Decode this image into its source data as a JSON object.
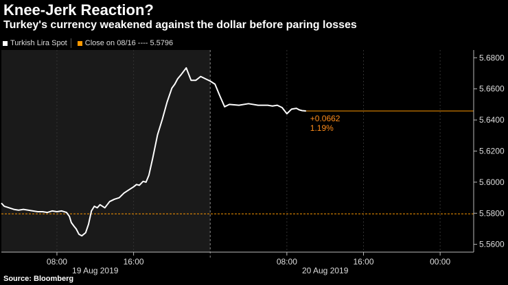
{
  "header": {
    "title": "Knee-Jerk Reaction?",
    "subtitle": "Turkey's currency weakened against the dollar before paring losses"
  },
  "legend": {
    "series_label": "Turkish Lira Spot",
    "close_label": "Close on 08/16 ---- 5.5796",
    "series_color": "#ffffff",
    "close_color": "#ff9900"
  },
  "source": "Source: Bloomberg",
  "chart_data": {
    "type": "line",
    "title": "Knee-Jerk Reaction?",
    "subtitle": "Turkey's currency weakened against the dollar before paring losses",
    "ylim": [
      5.555,
      5.685
    ],
    "yticks": [
      5.56,
      5.58,
      5.6,
      5.62,
      5.64,
      5.66,
      5.68
    ],
    "ytick_labels": [
      "5.5600",
      "5.5800",
      "5.6000",
      "5.6200",
      "5.6400",
      "5.6600",
      "5.6800"
    ],
    "x_unit": "hours since 00:00 19 Aug 2019",
    "xlim": [
      2.2,
      51.5
    ],
    "xticks": [
      {
        "x": 8,
        "label": "08:00"
      },
      {
        "x": 16,
        "label": "16:00"
      },
      {
        "x": 32,
        "label": "08:00"
      },
      {
        "x": 40,
        "label": "16:00"
      },
      {
        "x": 48,
        "label": "00:00"
      }
    ],
    "date_labels": [
      {
        "x": 12,
        "label": "19 Aug 2019"
      },
      {
        "x": 36,
        "label": "20 Aug 2019"
      }
    ],
    "day_divider_x": 24,
    "shaded_region": [
      2.2,
      24
    ],
    "reference_line": {
      "label": "Close on 08/16",
      "value": 5.5796
    },
    "last_value_line": 5.6458,
    "change_annotation": {
      "abs": "+0.0662",
      "pct": "1.19%"
    },
    "series": [
      {
        "name": "Turkish Lira Spot",
        "x": [
          2.2,
          2.5,
          3.0,
          3.5,
          4.0,
          4.5,
          5.0,
          5.5,
          6.0,
          6.5,
          7.0,
          7.5,
          8.0,
          8.5,
          9.0,
          9.3,
          9.5,
          9.8,
          10.0,
          10.3,
          10.6,
          11.0,
          11.3,
          11.6,
          11.9,
          12.2,
          12.5,
          13.0,
          13.5,
          14.0,
          14.5,
          15.0,
          15.5,
          16.0,
          16.3,
          16.6,
          17.0,
          17.3,
          17.6,
          18.0,
          18.5,
          19.0,
          19.5,
          20.0,
          20.3,
          20.6,
          21.0,
          21.5,
          22.0,
          22.5,
          23.0,
          23.5,
          24.0,
          24.5,
          25.0,
          25.5,
          26.0,
          27.0,
          28.0,
          29.0,
          29.5,
          30.0,
          30.5,
          31.0,
          31.5,
          32.0,
          32.5,
          33.0,
          33.3,
          33.6,
          34.0
        ],
        "values": [
          5.5865,
          5.5845,
          5.5835,
          5.5825,
          5.582,
          5.5825,
          5.582,
          5.5815,
          5.581,
          5.581,
          5.5805,
          5.5815,
          5.581,
          5.5815,
          5.5805,
          5.578,
          5.574,
          5.5715,
          5.57,
          5.5665,
          5.5655,
          5.5675,
          5.573,
          5.5815,
          5.5845,
          5.5835,
          5.5855,
          5.5835,
          5.5875,
          5.589,
          5.59,
          5.593,
          5.595,
          5.597,
          5.5985,
          5.598,
          5.6005,
          5.6,
          5.6045,
          5.6155,
          5.6305,
          5.6405,
          5.6515,
          5.6605,
          5.663,
          5.6665,
          5.6695,
          5.6735,
          5.6655,
          5.6655,
          5.668,
          5.6665,
          5.665,
          5.663,
          5.6555,
          5.6485,
          5.65,
          5.6495,
          5.6505,
          5.6495,
          5.6495,
          5.6495,
          5.649,
          5.6495,
          5.648,
          5.644,
          5.647,
          5.6475,
          5.6465,
          5.646,
          5.6458
        ]
      }
    ]
  }
}
